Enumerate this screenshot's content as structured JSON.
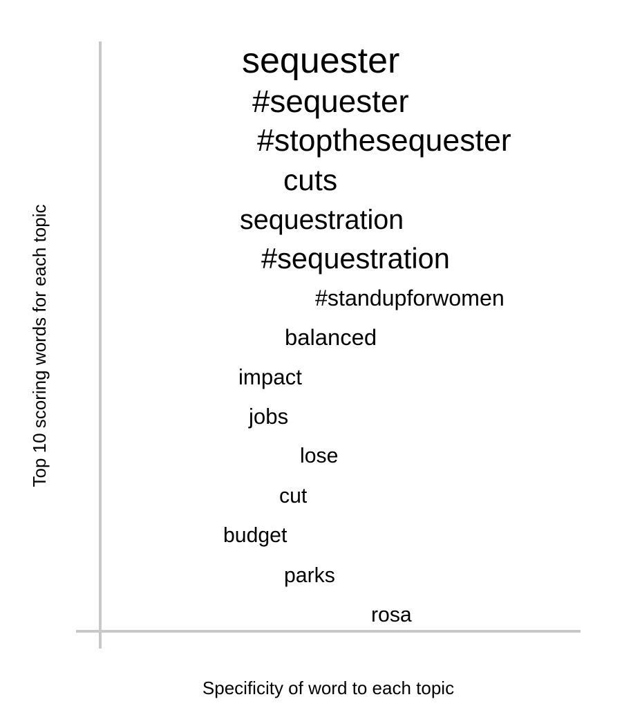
{
  "chart_data": {
    "type": "scatter",
    "title": "",
    "xlabel": "Specificity of word to each topic",
    "ylabel": "Top 10 scoring words for each topic",
    "grid": false,
    "axis_color": "#c8c8c8",
    "text_color": "#000000",
    "points": [
      {
        "word": "sequester",
        "weight": 1.0
      },
      {
        "word": "#sequester",
        "weight": 0.88
      },
      {
        "word": "#stopthesequester",
        "weight": 0.86
      },
      {
        "word": "cuts",
        "weight": 0.82
      },
      {
        "word": "sequestration",
        "weight": 0.76
      },
      {
        "word": "#sequestration",
        "weight": 0.8
      },
      {
        "word": "#standupforwomen",
        "weight": 0.62
      },
      {
        "word": "balanced",
        "weight": 0.63
      },
      {
        "word": "impact",
        "weight": 0.6
      },
      {
        "word": "jobs",
        "weight": 0.6
      },
      {
        "word": "lose",
        "weight": 0.58
      },
      {
        "word": "cut",
        "weight": 0.58
      },
      {
        "word": "budget",
        "weight": 0.58
      },
      {
        "word": "parks",
        "weight": 0.58
      },
      {
        "word": "rosa",
        "weight": 0.58
      }
    ]
  }
}
